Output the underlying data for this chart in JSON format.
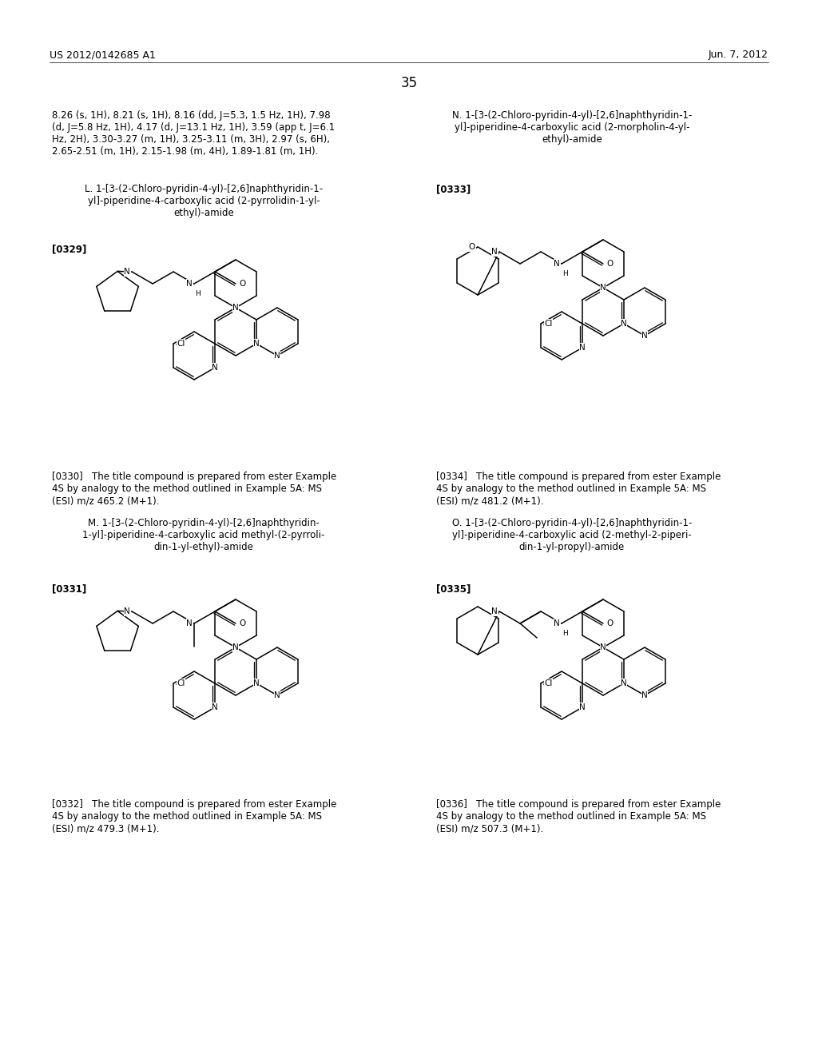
{
  "bg_color": "#ffffff",
  "header_left": "US 2012/0142685 A1",
  "header_right": "Jun. 7, 2012",
  "page_number": "35",
  "top_text_left": "8.26 (s, 1H), 8.21 (s, 1H), 8.16 (dd, J=5.3, 1.5 Hz, 1H), 7.98\n(d, J=5.8 Hz, 1H), 4.17 (d, J=13.1 Hz, 1H), 3.59 (app t, J=6.1\nHz, 2H), 3.30-3.27 (m, 1H), 3.25-3.11 (m, 3H), 2.97 (s, 6H),\n2.65-2.51 (m, 1H), 2.15-1.98 (m, 4H), 1.89-1.81 (m, 1H).",
  "label_L": "L. 1-[3-(2-Chloro-pyridin-4-yl)-[2,6]naphthyridin-1-\nyl]-piperidine-4-carboxylic acid (2-pyrrolidin-1-yl-\nethyl)-amide",
  "ref_0329": "[0329]",
  "label_N": "N. 1-[3-(2-Chloro-pyridin-4-yl)-[2,6]naphthyridin-1-\nyl]-piperidine-4-carboxylic acid (2-morpholin-4-yl-\nethyl)-amide",
  "ref_0333": "[0333]",
  "desc_0330": "[0330]   The title compound is prepared from ester Example\n4S by analogy to the method outlined in Example 5A: MS\n(ESI) m/z 465.2 (M+1).",
  "desc_0334": "[0334]   The title compound is prepared from ester Example\n4S by analogy to the method outlined in Example 5A: MS\n(ESI) m/z 481.2 (M+1).",
  "label_M": "M. 1-[3-(2-Chloro-pyridin-4-yl)-[2,6]naphthyridin-\n1-yl]-piperidine-4-carboxylic acid methyl-(2-pyrroli-\ndin-1-yl-ethyl)-amide",
  "ref_0331": "[0331]",
  "label_O": "O. 1-[3-(2-Chloro-pyridin-4-yl)-[2,6]naphthyridin-1-\nyl]-piperidine-4-carboxylic acid (2-methyl-2-piperi-\ndin-1-yl-propyl)-amide",
  "ref_0335": "[0335]",
  "desc_0332": "[0332]   The title compound is prepared from ester Example\n4S by analogy to the method outlined in Example 5A: MS\n(ESI) m/z 479.3 (M+1).",
  "desc_0336": "[0336]   The title compound is prepared from ester Example\n4S by analogy to the method outlined in Example 5A: MS\n(ESI) m/z 507.3 (M+1).",
  "font_header": 9,
  "font_body": 8.5,
  "font_pagenum": 12,
  "font_mol": 7.5,
  "font_mol_sub": 6.5
}
